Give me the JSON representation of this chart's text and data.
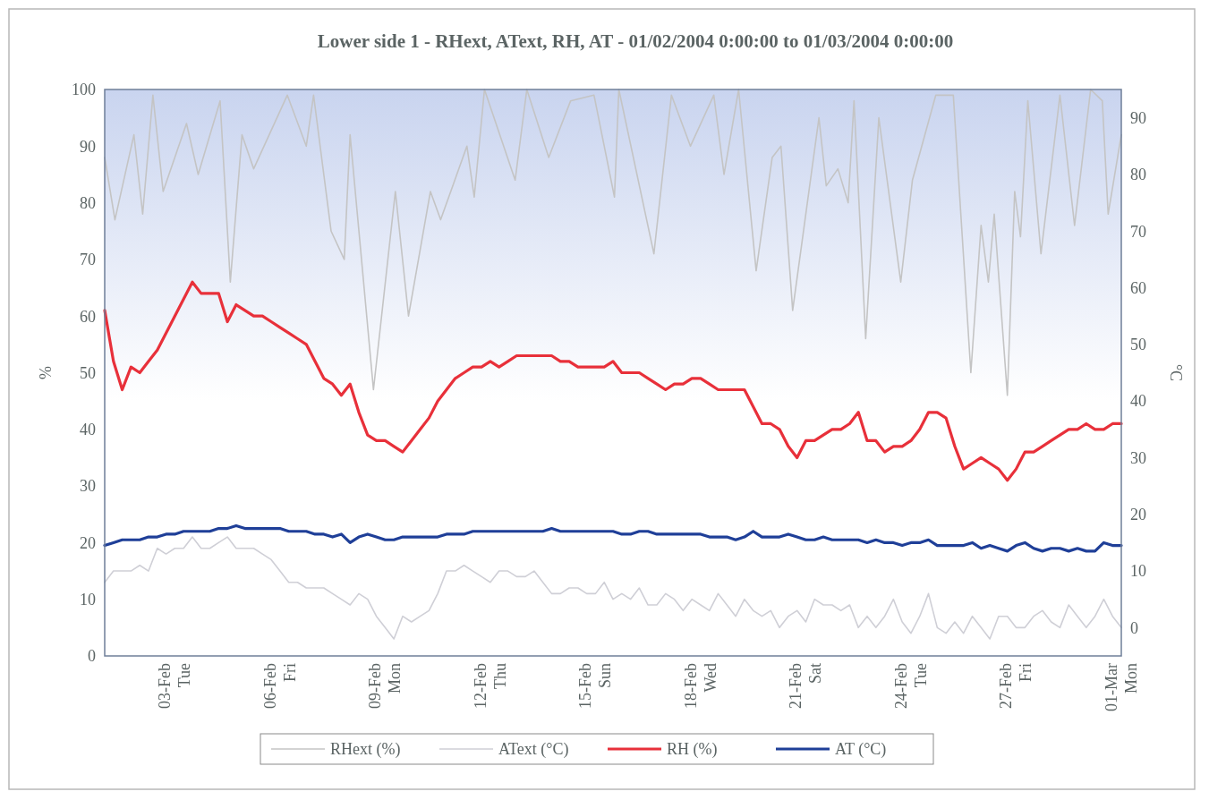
{
  "chart_data": {
    "type": "line",
    "title": "Lower side 1 - RHext, AText, RH, AT - 01/02/2004 0:00:00 to 01/03/2004 0:00:00",
    "ylabel": "%",
    "y2label": "°C",
    "x": [
      "2004-02-01T00:00",
      "2004-02-01T06:00",
      "2004-02-01T12:00",
      "2004-02-01T18:00",
      "2004-02-02T00:00",
      "2004-02-02T06:00",
      "2004-02-02T12:00",
      "2004-02-02T18:00",
      "2004-02-03T00:00",
      "2004-02-03T06:00",
      "2004-02-03T12:00",
      "2004-02-03T18:00",
      "2004-02-04T00:00",
      "2004-02-04T06:00",
      "2004-02-04T12:00",
      "2004-02-04T18:00",
      "2004-02-05T00:00",
      "2004-02-05T06:00",
      "2004-02-05T12:00",
      "2004-02-05T18:00",
      "2004-02-06T00:00",
      "2004-02-06T06:00",
      "2004-02-06T12:00",
      "2004-02-06T18:00",
      "2004-02-07T00:00",
      "2004-02-07T06:00",
      "2004-02-07T12:00",
      "2004-02-07T18:00",
      "2004-02-08T00:00",
      "2004-02-08T06:00",
      "2004-02-08T12:00",
      "2004-02-08T18:00",
      "2004-02-09T00:00",
      "2004-02-09T06:00",
      "2004-02-09T12:00",
      "2004-02-09T18:00",
      "2004-02-10T00:00",
      "2004-02-10T06:00",
      "2004-02-10T12:00",
      "2004-02-10T18:00",
      "2004-02-11T00:00",
      "2004-02-11T06:00",
      "2004-02-11T12:00",
      "2004-02-11T18:00",
      "2004-02-12T00:00",
      "2004-02-12T06:00",
      "2004-02-12T12:00",
      "2004-02-12T18:00",
      "2004-02-13T00:00",
      "2004-02-13T06:00",
      "2004-02-13T12:00",
      "2004-02-13T18:00",
      "2004-02-14T00:00",
      "2004-02-14T06:00",
      "2004-02-14T12:00",
      "2004-02-14T18:00",
      "2004-02-15T00:00",
      "2004-02-15T06:00",
      "2004-02-15T12:00",
      "2004-02-15T18:00",
      "2004-02-16T00:00",
      "2004-02-16T06:00",
      "2004-02-16T12:00",
      "2004-02-16T18:00",
      "2004-02-17T00:00",
      "2004-02-17T06:00",
      "2004-02-17T12:00",
      "2004-02-17T18:00",
      "2004-02-18T00:00",
      "2004-02-18T06:00",
      "2004-02-18T12:00",
      "2004-02-18T18:00",
      "2004-02-19T00:00",
      "2004-02-19T06:00",
      "2004-02-19T12:00",
      "2004-02-19T18:00",
      "2004-02-20T00:00",
      "2004-02-20T06:00",
      "2004-02-20T12:00",
      "2004-02-20T18:00",
      "2004-02-21T00:00",
      "2004-02-21T06:00",
      "2004-02-21T12:00",
      "2004-02-21T18:00",
      "2004-02-22T00:00",
      "2004-02-22T06:00",
      "2004-02-22T12:00",
      "2004-02-22T18:00",
      "2004-02-23T00:00",
      "2004-02-23T06:00",
      "2004-02-23T12:00",
      "2004-02-23T18:00",
      "2004-02-24T00:00",
      "2004-02-24T06:00",
      "2004-02-24T12:00",
      "2004-02-24T18:00",
      "2004-02-25T00:00",
      "2004-02-25T06:00",
      "2004-02-25T12:00",
      "2004-02-25T18:00",
      "2004-02-26T00:00",
      "2004-02-26T06:00",
      "2004-02-26T12:00",
      "2004-02-26T18:00",
      "2004-02-27T00:00",
      "2004-02-27T06:00",
      "2004-02-27T12:00",
      "2004-02-27T18:00",
      "2004-02-28T00:00",
      "2004-02-28T06:00",
      "2004-02-28T12:00",
      "2004-02-28T18:00",
      "2004-02-29T00:00",
      "2004-02-29T06:00",
      "2004-02-29T12:00",
      "2004-02-29T18:00",
      "2004-03-01T00:00"
    ],
    "series": [
      {
        "name": "RHext (%)",
        "color": "#c4c4c4",
        "x": [
          "2004-02-01T00:00",
          "2004-02-01T07:00",
          "2004-02-01T20:00",
          "2004-02-02T02:00",
          "2004-02-02T09:00",
          "2004-02-02T16:00",
          "2004-02-03T08:00",
          "2004-02-03T16:00",
          "2004-02-04T07:00",
          "2004-02-04T14:00",
          "2004-02-04T22:00",
          "2004-02-05T06:00",
          "2004-02-06T05:00",
          "2004-02-06T18:00",
          "2004-02-06T23:00",
          "2004-02-07T11:00",
          "2004-02-07T20:00",
          "2004-02-08T00:00",
          "2004-02-08T16:00",
          "2004-02-09T07:00",
          "2004-02-09T16:00",
          "2004-02-10T07:00",
          "2004-02-10T14:00",
          "2004-02-11T08:00",
          "2004-02-11T13:00",
          "2004-02-11T20:00",
          "2004-02-12T17:00",
          "2004-02-13T01:00",
          "2004-02-13T16:00",
          "2004-02-14T07:00",
          "2004-02-14T23:00",
          "2004-02-15T13:00",
          "2004-02-15T16:00",
          "2004-02-16T16:00",
          "2004-02-17T04:00",
          "2004-02-17T17:00",
          "2004-02-18T09:00",
          "2004-02-18T16:00",
          "2004-02-19T02:00",
          "2004-02-19T14:00",
          "2004-02-20T01:00",
          "2004-02-20T07:00",
          "2004-02-20T15:00",
          "2004-02-21T09:00",
          "2004-02-21T14:00",
          "2004-02-21T22:00",
          "2004-02-22T05:00",
          "2004-02-22T09:00",
          "2004-02-22T17:00",
          "2004-02-23T02:00",
          "2004-02-23T17:00",
          "2004-02-24T01:00",
          "2004-02-24T17:00",
          "2004-02-25T05:00",
          "2004-02-25T17:00",
          "2004-02-26T00:00",
          "2004-02-26T05:00",
          "2004-02-26T09:00",
          "2004-02-26T18:00",
          "2004-02-26T23:00",
          "2004-02-27T03:00",
          "2004-02-27T08:00",
          "2004-02-27T17:00",
          "2004-02-28T06:00",
          "2004-02-28T16:00",
          "2004-02-29T03:00",
          "2004-02-29T11:00",
          "2004-02-29T15:00",
          "2004-03-01T00:00"
        ],
        "values": [
          88,
          77,
          92,
          78,
          99,
          82,
          94,
          85,
          98,
          66,
          92,
          86,
          99,
          90,
          99,
          75,
          70,
          92,
          47,
          82,
          60,
          82,
          77,
          90,
          81,
          100,
          84,
          100,
          88,
          98,
          99,
          81,
          100,
          71,
          99,
          90,
          99,
          85,
          100,
          68,
          88,
          90,
          61,
          95,
          83,
          86,
          80,
          98,
          56,
          95,
          66,
          84,
          99,
          99,
          50,
          76,
          66,
          78,
          46,
          82,
          74,
          98,
          71,
          99,
          76,
          100,
          98,
          78,
          92
        ]
      },
      {
        "name": "AText (°C)",
        "color": "#cfcfd6",
        "axis": "y2",
        "values": [
          8,
          10,
          10,
          10,
          11,
          10,
          14,
          13,
          14,
          14,
          16,
          14,
          14,
          15,
          16,
          14,
          14,
          14,
          13,
          12,
          10,
          8,
          8,
          7,
          7,
          7,
          6,
          5,
          4,
          6,
          5,
          2,
          0,
          -2,
          2,
          1,
          2,
          3,
          6,
          10,
          10,
          11,
          10,
          9,
          8,
          10,
          10,
          9,
          9,
          10,
          8,
          6,
          6,
          7,
          7,
          6,
          6,
          8,
          5,
          6,
          5,
          7,
          4,
          4,
          6,
          5,
          3,
          5,
          4,
          3,
          6,
          4,
          2,
          5,
          3,
          2,
          3,
          0,
          2,
          3,
          1,
          5,
          4,
          4,
          3,
          4,
          0,
          2,
          0,
          2,
          5,
          1,
          -1,
          2,
          6,
          0,
          -1,
          1,
          -1,
          2,
          0,
          -2,
          2,
          2,
          0,
          0,
          2,
          3,
          1,
          0,
          4,
          2,
          0,
          2,
          5,
          2,
          0
        ]
      },
      {
        "name": "RH (%)",
        "color": "#e8303a",
        "values": [
          61,
          52,
          47,
          51,
          50,
          52,
          54,
          57,
          60,
          63,
          66,
          64,
          64,
          64,
          59,
          62,
          61,
          60,
          60,
          59,
          58,
          57,
          56,
          55,
          52,
          49,
          48,
          46,
          48,
          43,
          39,
          38,
          38,
          37,
          36,
          38,
          40,
          42,
          45,
          47,
          49,
          50,
          51,
          51,
          52,
          51,
          52,
          53,
          53,
          53,
          53,
          53,
          52,
          52,
          51,
          51,
          51,
          51,
          52,
          50,
          50,
          50,
          49,
          48,
          47,
          48,
          48,
          49,
          49,
          48,
          47,
          47,
          47,
          47,
          44,
          41,
          41,
          40,
          37,
          35,
          38,
          38,
          39,
          40,
          40,
          41,
          43,
          38,
          38,
          36,
          37,
          37,
          38,
          40,
          43,
          43,
          42,
          37,
          33,
          34,
          35,
          34,
          33,
          31,
          33,
          36,
          36,
          37,
          38,
          39,
          40,
          40,
          41,
          40,
          40,
          41,
          41
        ]
      },
      {
        "name": "AT (°C)",
        "color": "#1f3f98",
        "axis": "y2",
        "values": [
          14.5,
          15,
          15.5,
          15.5,
          15.5,
          16,
          16,
          16.5,
          16.5,
          17,
          17,
          17,
          17,
          17.5,
          17.5,
          18,
          17.5,
          17.5,
          17.5,
          17.5,
          17.5,
          17,
          17,
          17,
          16.5,
          16.5,
          16,
          16.5,
          15,
          16,
          16.5,
          16,
          15.5,
          15.5,
          16,
          16,
          16,
          16,
          16,
          16.5,
          16.5,
          16.5,
          17,
          17,
          17,
          17,
          17,
          17,
          17,
          17,
          17,
          17.5,
          17,
          17,
          17,
          17,
          17,
          17,
          17,
          16.5,
          16.5,
          17,
          17,
          16.5,
          16.5,
          16.5,
          16.5,
          16.5,
          16.5,
          16,
          16,
          16,
          15.5,
          16,
          17,
          16,
          16,
          16,
          16.5,
          16,
          15.5,
          15.5,
          16,
          15.5,
          15.5,
          15.5,
          15.5,
          15,
          15.5,
          15,
          15,
          14.5,
          15,
          15,
          15.5,
          14.5,
          14.5,
          14.5,
          14.5,
          15,
          14,
          14.5,
          14,
          13.5,
          14.5,
          15,
          14,
          13.5,
          14,
          14,
          13.5,
          14,
          13.5,
          13.5,
          15,
          14.5,
          14.5
        ]
      }
    ],
    "xlim": [
      "2004-02-01T00:00",
      "2004-03-01T00:00"
    ],
    "xticks": [
      {
        "value": "2004-02-03",
        "label": "03-Feb\nTue"
      },
      {
        "value": "2004-02-06",
        "label": "06-Feb\nFri"
      },
      {
        "value": "2004-02-09",
        "label": "09-Feb\nMon"
      },
      {
        "value": "2004-02-12",
        "label": "12-Feb\nThu"
      },
      {
        "value": "2004-02-15",
        "label": "15-Feb\nSun"
      },
      {
        "value": "2004-02-18",
        "label": "18-Feb\nWed"
      },
      {
        "value": "2004-02-21",
        "label": "21-Feb\nSat"
      },
      {
        "value": "2004-02-24",
        "label": "24-Feb\nTue"
      },
      {
        "value": "2004-02-27",
        "label": "27-Feb\nFri"
      },
      {
        "value": "2004-03-01",
        "label": "01-Mar\nMon"
      }
    ],
    "ylim": [
      0,
      100
    ],
    "yticks": [
      0,
      10,
      20,
      30,
      40,
      50,
      60,
      70,
      80,
      90,
      100
    ],
    "y2lim": [
      -5,
      95
    ],
    "y2ticks": [
      0,
      10,
      20,
      30,
      40,
      50,
      60,
      70,
      80,
      90
    ],
    "legend": "bottom",
    "grid": false,
    "marker": "none",
    "line_style": "solid"
  }
}
